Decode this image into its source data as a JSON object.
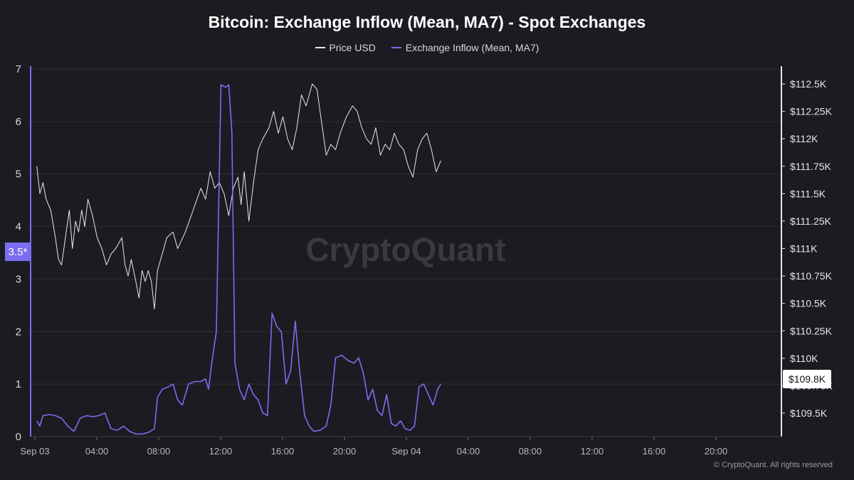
{
  "chart_data": {
    "type": "line",
    "title": "Bitcoin: Exchange Inflow (Mean, MA7) - Spot Exchanges",
    "legend_position": "top-center",
    "grid": true,
    "x_range_hours": [
      0,
      26.5
    ],
    "x_ticks": [
      {
        "h": 0,
        "label": "Sep 03"
      },
      {
        "h": 4,
        "label": "04:00"
      },
      {
        "h": 8,
        "label": "08:00"
      },
      {
        "h": 12,
        "label": "12:00"
      },
      {
        "h": 16,
        "label": "16:00"
      },
      {
        "h": 20,
        "label": "20:00"
      },
      {
        "h": 24,
        "label": "Sep 04"
      },
      {
        "h": 28,
        "label": "04:00"
      },
      {
        "h": 32,
        "label": "08:00"
      },
      {
        "h": 36,
        "label": "12:00"
      },
      {
        "h": 40,
        "label": "16:00"
      },
      {
        "h": 44,
        "label": "20:00"
      }
    ],
    "y_left": {
      "min": 0,
      "max": 7,
      "ticks": [
        "0",
        "1",
        "2",
        "3",
        "4",
        "5",
        "6",
        "7"
      ]
    },
    "y_right": {
      "min": 109250,
      "max": 112500,
      "ticks": [
        {
          "v": 109500,
          "label": "$109.5K"
        },
        {
          "v": 109750,
          "label": "$109.75K"
        },
        {
          "v": 110000,
          "label": "$110K"
        },
        {
          "v": 110250,
          "label": "$110.25K"
        },
        {
          "v": 110500,
          "label": "$110.5K"
        },
        {
          "v": 110750,
          "label": "$110.75K"
        },
        {
          "v": 111000,
          "label": "$111K"
        },
        {
          "v": 111250,
          "label": "$111.25K"
        },
        {
          "v": 111500,
          "label": "$111.5K"
        },
        {
          "v": 111750,
          "label": "$111.75K"
        },
        {
          "v": 112000,
          "label": "$112K"
        },
        {
          "v": 112250,
          "label": "$112.25K"
        },
        {
          "v": 112500,
          "label": "$112.5K"
        }
      ]
    },
    "markers": {
      "left": "3.5*",
      "right": "$109.8K"
    },
    "series": [
      {
        "name": "Price USD",
        "axis": "right",
        "color": "#e8e8ec",
        "points": [
          [
            0.4,
            111750
          ],
          [
            0.6,
            111500
          ],
          [
            0.8,
            111600
          ],
          [
            1.0,
            111450
          ],
          [
            1.3,
            111350
          ],
          [
            1.6,
            111100
          ],
          [
            1.8,
            110900
          ],
          [
            2.0,
            110850
          ],
          [
            2.3,
            111150
          ],
          [
            2.5,
            111350
          ],
          [
            2.7,
            111000
          ],
          [
            2.9,
            111250
          ],
          [
            3.1,
            111150
          ],
          [
            3.3,
            111350
          ],
          [
            3.5,
            111200
          ],
          [
            3.7,
            111450
          ],
          [
            4.0,
            111300
          ],
          [
            4.3,
            111100
          ],
          [
            4.6,
            111000
          ],
          [
            4.9,
            110850
          ],
          [
            5.2,
            110950
          ],
          [
            5.5,
            111000
          ],
          [
            5.9,
            111100
          ],
          [
            6.1,
            110850
          ],
          [
            6.3,
            110750
          ],
          [
            6.5,
            110900
          ],
          [
            6.8,
            110700
          ],
          [
            7.0,
            110550
          ],
          [
            7.2,
            110800
          ],
          [
            7.4,
            110700
          ],
          [
            7.6,
            110800
          ],
          [
            7.8,
            110700
          ],
          [
            8.0,
            110450
          ],
          [
            8.2,
            110800
          ],
          [
            8.5,
            110950
          ],
          [
            8.8,
            111100
          ],
          [
            9.2,
            111150
          ],
          [
            9.5,
            111000
          ],
          [
            10.0,
            111150
          ],
          [
            10.5,
            111350
          ],
          [
            11.0,
            111550
          ],
          [
            11.3,
            111450
          ],
          [
            11.6,
            111700
          ],
          [
            11.9,
            111550
          ],
          [
            12.2,
            111600
          ],
          [
            12.5,
            111500
          ],
          [
            12.8,
            111300
          ],
          [
            13.1,
            111550
          ],
          [
            13.4,
            111650
          ],
          [
            13.6,
            111400
          ],
          [
            13.8,
            111700
          ],
          [
            14.1,
            111250
          ],
          [
            14.4,
            111600
          ],
          [
            14.7,
            111900
          ],
          [
            15.0,
            112000
          ],
          [
            15.4,
            112100
          ],
          [
            15.7,
            112250
          ],
          [
            16.0,
            112050
          ],
          [
            16.3,
            112200
          ],
          [
            16.6,
            112000
          ],
          [
            16.9,
            111900
          ],
          [
            17.2,
            112100
          ],
          [
            17.5,
            112400
          ],
          [
            17.8,
            112300
          ],
          [
            18.2,
            112500
          ],
          [
            18.5,
            112450
          ],
          [
            18.8,
            112150
          ],
          [
            19.1,
            111850
          ],
          [
            19.4,
            111950
          ],
          [
            19.7,
            111900
          ],
          [
            20.0,
            112050
          ],
          [
            20.4,
            112200
          ],
          [
            20.8,
            112300
          ],
          [
            21.1,
            112250
          ],
          [
            21.4,
            112100
          ],
          [
            21.7,
            112000
          ],
          [
            22.0,
            111950
          ],
          [
            22.3,
            112100
          ],
          [
            22.6,
            111850
          ],
          [
            22.9,
            111950
          ],
          [
            23.2,
            111900
          ],
          [
            23.5,
            112050
          ],
          [
            23.8,
            111950
          ],
          [
            24.1,
            111900
          ],
          [
            24.4,
            111750
          ],
          [
            24.7,
            111650
          ],
          [
            25.0,
            111900
          ],
          [
            25.3,
            112000
          ],
          [
            25.6,
            112050
          ],
          [
            25.9,
            111900
          ],
          [
            26.2,
            111700
          ],
          [
            26.5,
            111800
          ]
        ]
      },
      {
        "name": "Exchange Inflow (Mean, MA7)",
        "axis": "left",
        "color": "#7b6cf0",
        "points": [
          [
            0.4,
            0.3
          ],
          [
            0.6,
            0.2
          ],
          [
            0.8,
            0.4
          ],
          [
            1.2,
            0.42
          ],
          [
            1.6,
            0.4
          ],
          [
            2.0,
            0.35
          ],
          [
            2.4,
            0.2
          ],
          [
            2.8,
            0.1
          ],
          [
            3.2,
            0.35
          ],
          [
            3.6,
            0.4
          ],
          [
            4.0,
            0.38
          ],
          [
            4.4,
            0.4
          ],
          [
            4.8,
            0.45
          ],
          [
            5.2,
            0.15
          ],
          [
            5.6,
            0.12
          ],
          [
            6.0,
            0.2
          ],
          [
            6.4,
            0.1
          ],
          [
            6.8,
            0.05
          ],
          [
            7.2,
            0.05
          ],
          [
            7.6,
            0.08
          ],
          [
            8.0,
            0.15
          ],
          [
            8.2,
            0.75
          ],
          [
            8.5,
            0.9
          ],
          [
            8.9,
            0.95
          ],
          [
            9.2,
            1.0
          ],
          [
            9.5,
            0.7
          ],
          [
            9.8,
            0.6
          ],
          [
            10.2,
            1.0
          ],
          [
            10.6,
            1.05
          ],
          [
            11.0,
            1.05
          ],
          [
            11.3,
            1.1
          ],
          [
            11.5,
            0.9
          ],
          [
            11.7,
            1.4
          ],
          [
            12.0,
            2.0
          ],
          [
            12.3,
            6.7
          ],
          [
            12.6,
            6.65
          ],
          [
            12.8,
            6.7
          ],
          [
            13.0,
            5.8
          ],
          [
            13.2,
            1.4
          ],
          [
            13.5,
            0.9
          ],
          [
            13.8,
            0.7
          ],
          [
            14.1,
            1.0
          ],
          [
            14.4,
            0.8
          ],
          [
            14.7,
            0.7
          ],
          [
            15.0,
            0.45
          ],
          [
            15.3,
            0.4
          ],
          [
            15.6,
            2.35
          ],
          [
            15.9,
            2.1
          ],
          [
            16.2,
            2.0
          ],
          [
            16.5,
            1.0
          ],
          [
            16.8,
            1.25
          ],
          [
            17.1,
            2.2
          ],
          [
            17.4,
            1.2
          ],
          [
            17.7,
            0.4
          ],
          [
            18.0,
            0.2
          ],
          [
            18.3,
            0.1
          ],
          [
            18.7,
            0.12
          ],
          [
            19.1,
            0.2
          ],
          [
            19.4,
            0.6
          ],
          [
            19.7,
            1.5
          ],
          [
            20.1,
            1.55
          ],
          [
            20.5,
            1.45
          ],
          [
            20.9,
            1.4
          ],
          [
            21.2,
            1.5
          ],
          [
            21.5,
            1.2
          ],
          [
            21.8,
            0.7
          ],
          [
            22.1,
            0.9
          ],
          [
            22.4,
            0.5
          ],
          [
            22.7,
            0.4
          ],
          [
            23.0,
            0.8
          ],
          [
            23.3,
            0.25
          ],
          [
            23.6,
            0.2
          ],
          [
            23.9,
            0.3
          ],
          [
            24.2,
            0.15
          ],
          [
            24.5,
            0.12
          ],
          [
            24.8,
            0.2
          ],
          [
            25.1,
            0.95
          ],
          [
            25.4,
            1.0
          ],
          [
            25.7,
            0.8
          ],
          [
            26.0,
            0.6
          ],
          [
            26.3,
            0.9
          ],
          [
            26.5,
            1.0
          ]
        ]
      }
    ]
  },
  "footer": {
    "copyright": "© CryptoQuant. All rights reserved"
  },
  "watermark": "CryptoQuant"
}
